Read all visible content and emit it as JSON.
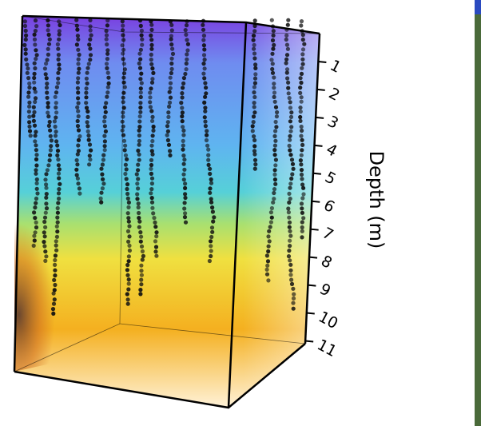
{
  "chart_data": {
    "type": "volume",
    "ylabel": "Depth (m)",
    "ylim": [
      0,
      11.1
    ],
    "yticks": [
      1,
      2,
      3,
      4,
      5,
      6,
      7,
      8,
      9,
      10,
      11
    ]
  }
}
